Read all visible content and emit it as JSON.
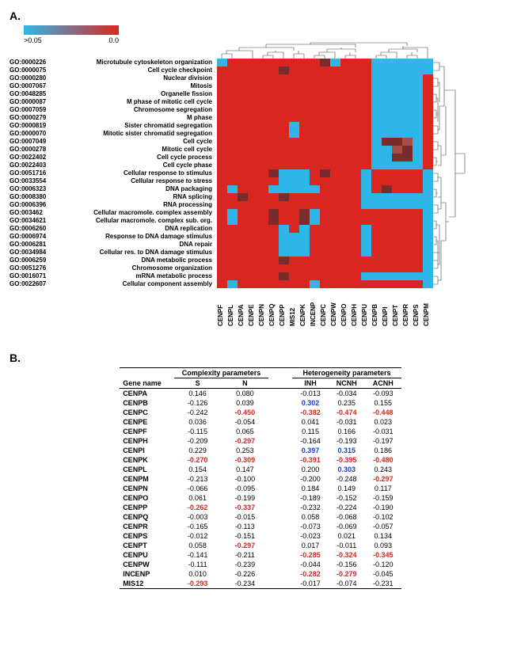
{
  "panelA": {
    "label": "A.",
    "colorbar": {
      "left_label": ">0.05",
      "right_label": "0.0",
      "color_low": "#2fb6e8",
      "color_high": "#d92620"
    },
    "go_rows": [
      {
        "id": "GO:0000226",
        "term": "Microtubule cytoskeleton organization"
      },
      {
        "id": "GO:0000075",
        "term": "Cell cycle checkpoint"
      },
      {
        "id": "GO:0000280",
        "term": "Nuclear division"
      },
      {
        "id": "GO:0007067",
        "term": "Mitosis"
      },
      {
        "id": "GO:0048285",
        "term": "Organelle fission"
      },
      {
        "id": "GO:0000087",
        "term": "M phase of mitotic cell cycle"
      },
      {
        "id": "GO:0007059",
        "term": "Chromosome segregation"
      },
      {
        "id": "GO:0000279",
        "term": "M phase"
      },
      {
        "id": "GO:0000819",
        "term": "Sister chromatid segregation"
      },
      {
        "id": "GO:0000070",
        "term": "Mitotic sister chromatid segregation"
      },
      {
        "id": "GO:0007049",
        "term": "Cell cycle"
      },
      {
        "id": "GO:0000278",
        "term": "Mitotic cell cycle"
      },
      {
        "id": "GO:0022402",
        "term": "Cell cycle process"
      },
      {
        "id": "GO:0022403",
        "term": "Cell cycle phase"
      },
      {
        "id": "GO:0051716",
        "term": "Cellular response to stimulus"
      },
      {
        "id": "GO:0033554",
        "term": "Cellular response to stress"
      },
      {
        "id": "GO:0006323",
        "term": "DNA packaging"
      },
      {
        "id": "GO:0008380",
        "term": "RNA splicing"
      },
      {
        "id": "GO:0006396",
        "term": "RNA processing"
      },
      {
        "id": "GO:003462",
        "term": "Cellular macromole. complex assembly"
      },
      {
        "id": "GO:0034621",
        "term": "Cellular macromole. complex sub. org."
      },
      {
        "id": "GO:0006260",
        "term": "DNA replication"
      },
      {
        "id": "GO:0006974",
        "term": "Response to DNA damage stimulus"
      },
      {
        "id": "GO:0006281",
        "term": "DNA repair"
      },
      {
        "id": "GO:0034984",
        "term": "Cellular res. to DNA damage stimulus"
      },
      {
        "id": "GO:0006259",
        "term": "DNA metabolic process"
      },
      {
        "id": "GO:0051276",
        "term": "Chromosome organization"
      },
      {
        "id": "GO:0016071",
        "term": "mRNA metabolic process"
      },
      {
        "id": "GO:0022607",
        "term": "Cellular component assembly"
      }
    ],
    "columns": [
      "CENPF",
      "CENPL",
      "CENPA",
      "CENPE",
      "CENPN",
      "CENPQ",
      "CENPP",
      "MIS12",
      "CENPK",
      "INCENP",
      "CENPC",
      "CENPW",
      "CENPO",
      "CENPH",
      "CENPU",
      "CENPB",
      "CENPI",
      "CENPT",
      "CENPR",
      "CENPS",
      "CENPM"
    ],
    "colors": {
      "r": "#d92620",
      "b": "#2fb6e8",
      "d": "#7a2c2a",
      "m": "#a84c48",
      "g": "#5a5858"
    },
    "matrix": [
      [
        "b",
        "r",
        "r",
        "r",
        "r",
        "r",
        "r",
        "r",
        "r",
        "r",
        "d",
        "b",
        "r",
        "r",
        "r",
        "b",
        "b",
        "b",
        "b",
        "b",
        "b"
      ],
      [
        "r",
        "r",
        "r",
        "r",
        "r",
        "r",
        "d",
        "r",
        "r",
        "r",
        "r",
        "r",
        "r",
        "r",
        "r",
        "b",
        "b",
        "b",
        "b",
        "b",
        "b"
      ],
      [
        "r",
        "r",
        "r",
        "r",
        "r",
        "r",
        "r",
        "r",
        "r",
        "r",
        "r",
        "r",
        "r",
        "r",
        "r",
        "b",
        "b",
        "b",
        "b",
        "b",
        "r"
      ],
      [
        "r",
        "r",
        "r",
        "r",
        "r",
        "r",
        "r",
        "r",
        "r",
        "r",
        "r",
        "r",
        "r",
        "r",
        "r",
        "b",
        "b",
        "b",
        "b",
        "b",
        "r"
      ],
      [
        "r",
        "r",
        "r",
        "r",
        "r",
        "r",
        "r",
        "r",
        "r",
        "r",
        "r",
        "r",
        "r",
        "r",
        "r",
        "b",
        "b",
        "b",
        "b",
        "b",
        "r"
      ],
      [
        "r",
        "r",
        "r",
        "r",
        "r",
        "r",
        "r",
        "r",
        "r",
        "r",
        "r",
        "r",
        "r",
        "r",
        "r",
        "b",
        "b",
        "b",
        "b",
        "b",
        "r"
      ],
      [
        "r",
        "r",
        "r",
        "r",
        "r",
        "r",
        "r",
        "r",
        "r",
        "r",
        "r",
        "r",
        "r",
        "r",
        "r",
        "b",
        "b",
        "b",
        "b",
        "b",
        "r"
      ],
      [
        "r",
        "r",
        "r",
        "r",
        "r",
        "r",
        "r",
        "r",
        "r",
        "r",
        "r",
        "r",
        "r",
        "r",
        "r",
        "b",
        "b",
        "b",
        "b",
        "b",
        "r"
      ],
      [
        "r",
        "r",
        "r",
        "r",
        "r",
        "r",
        "r",
        "b",
        "r",
        "r",
        "r",
        "r",
        "r",
        "r",
        "r",
        "b",
        "b",
        "b",
        "b",
        "b",
        "r"
      ],
      [
        "r",
        "r",
        "r",
        "r",
        "r",
        "r",
        "r",
        "b",
        "r",
        "r",
        "r",
        "r",
        "r",
        "r",
        "r",
        "b",
        "b",
        "b",
        "b",
        "b",
        "r"
      ],
      [
        "r",
        "r",
        "r",
        "r",
        "r",
        "r",
        "r",
        "r",
        "r",
        "r",
        "r",
        "r",
        "r",
        "r",
        "r",
        "b",
        "d",
        "d",
        "m",
        "b",
        "r"
      ],
      [
        "r",
        "r",
        "r",
        "r",
        "r",
        "r",
        "r",
        "r",
        "r",
        "r",
        "r",
        "r",
        "r",
        "r",
        "r",
        "b",
        "b",
        "m",
        "d",
        "b",
        "r"
      ],
      [
        "r",
        "r",
        "r",
        "r",
        "r",
        "r",
        "r",
        "r",
        "r",
        "r",
        "r",
        "r",
        "r",
        "r",
        "r",
        "b",
        "b",
        "d",
        "d",
        "b",
        "r"
      ],
      [
        "r",
        "r",
        "r",
        "r",
        "r",
        "r",
        "r",
        "r",
        "r",
        "r",
        "r",
        "r",
        "r",
        "r",
        "r",
        "b",
        "b",
        "b",
        "b",
        "b",
        "r"
      ],
      [
        "r",
        "r",
        "r",
        "r",
        "r",
        "d",
        "b",
        "b",
        "b",
        "r",
        "d",
        "r",
        "r",
        "r",
        "b",
        "r",
        "r",
        "r",
        "r",
        "r",
        "b"
      ],
      [
        "r",
        "r",
        "r",
        "r",
        "r",
        "r",
        "b",
        "b",
        "b",
        "r",
        "r",
        "r",
        "r",
        "r",
        "b",
        "r",
        "r",
        "r",
        "r",
        "r",
        "b"
      ],
      [
        "r",
        "b",
        "r",
        "r",
        "r",
        "b",
        "b",
        "b",
        "b",
        "b",
        "r",
        "r",
        "r",
        "r",
        "b",
        "r",
        "d",
        "r",
        "r",
        "r",
        "b"
      ],
      [
        "r",
        "r",
        "d",
        "r",
        "r",
        "r",
        "d",
        "r",
        "r",
        "r",
        "r",
        "r",
        "r",
        "r",
        "b",
        "b",
        "b",
        "b",
        "b",
        "b",
        "b"
      ],
      [
        "r",
        "r",
        "r",
        "r",
        "r",
        "r",
        "r",
        "r",
        "r",
        "r",
        "r",
        "r",
        "r",
        "r",
        "b",
        "b",
        "b",
        "b",
        "b",
        "b",
        "b"
      ],
      [
        "r",
        "b",
        "r",
        "r",
        "r",
        "d",
        "r",
        "r",
        "d",
        "b",
        "r",
        "r",
        "r",
        "r",
        "r",
        "r",
        "r",
        "r",
        "r",
        "r",
        "b"
      ],
      [
        "r",
        "b",
        "r",
        "r",
        "r",
        "d",
        "r",
        "r",
        "d",
        "b",
        "r",
        "r",
        "r",
        "r",
        "r",
        "r",
        "r",
        "r",
        "r",
        "r",
        "b"
      ],
      [
        "r",
        "r",
        "r",
        "r",
        "r",
        "r",
        "b",
        "r",
        "b",
        "r",
        "r",
        "r",
        "r",
        "r",
        "b",
        "r",
        "r",
        "r",
        "r",
        "r",
        "b"
      ],
      [
        "r",
        "r",
        "r",
        "r",
        "r",
        "r",
        "b",
        "b",
        "b",
        "r",
        "r",
        "r",
        "r",
        "r",
        "b",
        "r",
        "r",
        "r",
        "r",
        "r",
        "b"
      ],
      [
        "r",
        "r",
        "r",
        "r",
        "r",
        "r",
        "b",
        "b",
        "b",
        "r",
        "r",
        "r",
        "r",
        "r",
        "b",
        "r",
        "r",
        "r",
        "r",
        "r",
        "b"
      ],
      [
        "r",
        "r",
        "r",
        "r",
        "r",
        "r",
        "b",
        "b",
        "b",
        "r",
        "r",
        "r",
        "r",
        "r",
        "b",
        "r",
        "r",
        "r",
        "r",
        "r",
        "b"
      ],
      [
        "r",
        "r",
        "r",
        "r",
        "r",
        "r",
        "d",
        "r",
        "r",
        "r",
        "r",
        "r",
        "r",
        "r",
        "r",
        "r",
        "r",
        "r",
        "r",
        "r",
        "b"
      ],
      [
        "r",
        "r",
        "r",
        "r",
        "r",
        "r",
        "r",
        "r",
        "r",
        "r",
        "r",
        "r",
        "r",
        "r",
        "r",
        "r",
        "r",
        "r",
        "r",
        "r",
        "b"
      ],
      [
        "r",
        "r",
        "r",
        "r",
        "r",
        "r",
        "d",
        "r",
        "r",
        "r",
        "r",
        "r",
        "r",
        "r",
        "b",
        "b",
        "b",
        "b",
        "b",
        "b",
        "b"
      ],
      [
        "r",
        "b",
        "r",
        "r",
        "r",
        "r",
        "r",
        "r",
        "r",
        "b",
        "r",
        "r",
        "r",
        "r",
        "r",
        "r",
        "r",
        "r",
        "r",
        "r",
        "b"
      ]
    ]
  },
  "panelB": {
    "label": "B.",
    "headers": {
      "gene": "Gene name",
      "complexity": "Complexity parameters",
      "heterogeneity": "Heterogeneity parameters",
      "S": "S",
      "N": "N",
      "INH": "INH",
      "NCNH": "NCNH",
      "ACNH": "ACNH"
    },
    "rows": [
      {
        "gene": "CENPA",
        "S": {
          "v": "0.146"
        },
        "N": {
          "v": "0.080"
        },
        "INH": {
          "v": "-0.013"
        },
        "NCNH": {
          "v": "-0.034"
        },
        "ACNH": {
          "v": "-0.093"
        }
      },
      {
        "gene": "CENPB",
        "S": {
          "v": "-0.126"
        },
        "N": {
          "v": "0.039"
        },
        "INH": {
          "v": "0.302",
          "c": "blue"
        },
        "NCNH": {
          "v": "0.235"
        },
        "ACNH": {
          "v": "0.155"
        }
      },
      {
        "gene": "CENPC",
        "S": {
          "v": "-0.242"
        },
        "N": {
          "v": "-0.450",
          "c": "red"
        },
        "INH": {
          "v": "-0.382",
          "c": "red"
        },
        "NCNH": {
          "v": "-0.474",
          "c": "red"
        },
        "ACNH": {
          "v": "-0.448",
          "c": "red"
        }
      },
      {
        "gene": "CENPE",
        "S": {
          "v": "0.036"
        },
        "N": {
          "v": "-0.054"
        },
        "INH": {
          "v": "0.041"
        },
        "NCNH": {
          "v": "-0.031"
        },
        "ACNH": {
          "v": "0.023"
        }
      },
      {
        "gene": "CENPF",
        "S": {
          "v": "-0.115"
        },
        "N": {
          "v": "0.065"
        },
        "INH": {
          "v": "0.115"
        },
        "NCNH": {
          "v": "0.166"
        },
        "ACNH": {
          "v": "-0.031"
        }
      },
      {
        "gene": "CENPH",
        "S": {
          "v": "-0.209"
        },
        "N": {
          "v": "-0.297",
          "c": "red"
        },
        "INH": {
          "v": "-0.164"
        },
        "NCNH": {
          "v": "-0.193"
        },
        "ACNH": {
          "v": "-0.197"
        }
      },
      {
        "gene": "CENPI",
        "S": {
          "v": "0.229"
        },
        "N": {
          "v": "0.253"
        },
        "INH": {
          "v": "0.397",
          "c": "blue"
        },
        "NCNH": {
          "v": "0.315",
          "c": "blue"
        },
        "ACNH": {
          "v": "0.186"
        }
      },
      {
        "gene": "CENPK",
        "S": {
          "v": "-0.270",
          "c": "red"
        },
        "N": {
          "v": "-0.309",
          "c": "red"
        },
        "INH": {
          "v": "-0.391",
          "c": "red"
        },
        "NCNH": {
          "v": "-0.395",
          "c": "red"
        },
        "ACNH": {
          "v": "-0.480",
          "c": "red"
        }
      },
      {
        "gene": "CENPL",
        "S": {
          "v": "0.154"
        },
        "N": {
          "v": "0.147"
        },
        "INH": {
          "v": "0.200"
        },
        "NCNH": {
          "v": "0.303",
          "c": "blue"
        },
        "ACNH": {
          "v": "0.243"
        }
      },
      {
        "gene": "CENPM",
        "S": {
          "v": "-0.213"
        },
        "N": {
          "v": "-0.100"
        },
        "INH": {
          "v": "-0.200"
        },
        "NCNH": {
          "v": "-0.248"
        },
        "ACNH": {
          "v": "-0.297",
          "c": "red"
        }
      },
      {
        "gene": "CENPN",
        "S": {
          "v": "-0.066"
        },
        "N": {
          "v": "-0.095"
        },
        "INH": {
          "v": "0.184"
        },
        "NCNH": {
          "v": "0.149"
        },
        "ACNH": {
          "v": "0.117"
        }
      },
      {
        "gene": "CENPO",
        "S": {
          "v": "0.061"
        },
        "N": {
          "v": "-0.199"
        },
        "INH": {
          "v": "-0.189"
        },
        "NCNH": {
          "v": "-0.152"
        },
        "ACNH": {
          "v": "-0.159"
        }
      },
      {
        "gene": "CENPP",
        "S": {
          "v": "-0.262",
          "c": "red"
        },
        "N": {
          "v": "-0.337",
          "c": "red"
        },
        "INH": {
          "v": "-0.232"
        },
        "NCNH": {
          "v": "-0.224"
        },
        "ACNH": {
          "v": "-0.190"
        }
      },
      {
        "gene": "CENPQ",
        "S": {
          "v": "-0.003"
        },
        "N": {
          "v": "-0.015"
        },
        "INH": {
          "v": "0.058"
        },
        "NCNH": {
          "v": "-0.068"
        },
        "ACNH": {
          "v": "-0.102"
        }
      },
      {
        "gene": "CENPR",
        "S": {
          "v": "-0.165"
        },
        "N": {
          "v": "-0.113"
        },
        "INH": {
          "v": "-0.073"
        },
        "NCNH": {
          "v": "-0.069"
        },
        "ACNH": {
          "v": "-0.057"
        }
      },
      {
        "gene": "CENPS",
        "S": {
          "v": "-0.012"
        },
        "N": {
          "v": "-0.151"
        },
        "INH": {
          "v": "-0.023"
        },
        "NCNH": {
          "v": "0.021"
        },
        "ACNH": {
          "v": "0.134"
        }
      },
      {
        "gene": "CENPT",
        "S": {
          "v": "0.058"
        },
        "N": {
          "v": "-0.297",
          "c": "red"
        },
        "INH": {
          "v": "0.017"
        },
        "NCNH": {
          "v": "-0.011"
        },
        "ACNH": {
          "v": "0.093"
        }
      },
      {
        "gene": "CENPU",
        "S": {
          "v": "-0.141"
        },
        "N": {
          "v": "-0.211"
        },
        "INH": {
          "v": "-0.285",
          "c": "red"
        },
        "NCNH": {
          "v": "-0.324",
          "c": "red"
        },
        "ACNH": {
          "v": "-0.345",
          "c": "red"
        }
      },
      {
        "gene": "CENPW",
        "S": {
          "v": "-0.111"
        },
        "N": {
          "v": "-0.239"
        },
        "INH": {
          "v": "-0.044"
        },
        "NCNH": {
          "v": "-0.156"
        },
        "ACNH": {
          "v": "-0.120"
        }
      },
      {
        "gene": "INCENP",
        "S": {
          "v": "0.010"
        },
        "N": {
          "v": "-0.226"
        },
        "INH": {
          "v": "-0.282",
          "c": "red"
        },
        "NCNH": {
          "v": "-0.279",
          "c": "red"
        },
        "ACNH": {
          "v": "-0.045"
        }
      },
      {
        "gene": "MIS12",
        "S": {
          "v": "-0.293",
          "c": "red"
        },
        "N": {
          "v": "-0.234"
        },
        "INH": {
          "v": "-0.017"
        },
        "NCNH": {
          "v": "-0.074"
        },
        "ACNH": {
          "v": "-0.231"
        }
      }
    ]
  }
}
